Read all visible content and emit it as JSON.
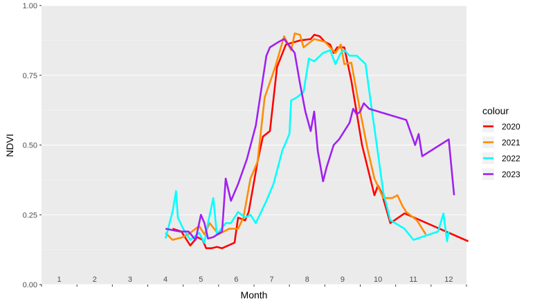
{
  "chart_data": {
    "type": "line",
    "xlabel": "Month",
    "ylabel": "NDVI",
    "xlim": [
      0.5,
      12.5
    ],
    "ylim": [
      0,
      1
    ],
    "x_ticks": [
      "1",
      "2",
      "3",
      "4",
      "5",
      "6",
      "7",
      "8",
      "9",
      "10",
      "11",
      "12"
    ],
    "y_ticks": [
      "0.00",
      "0.25",
      "0.50",
      "0.75",
      "1.00"
    ],
    "grid": true,
    "legend": {
      "title": "colour",
      "position": "right"
    },
    "series": [
      {
        "name": "2020",
        "color": "#ff0000",
        "points": [
          [
            4.2,
            0.2
          ],
          [
            4.45,
            0.19
          ],
          [
            4.7,
            0.14
          ],
          [
            4.9,
            0.17
          ],
          [
            5.05,
            0.16
          ],
          [
            5.15,
            0.13
          ],
          [
            5.3,
            0.13
          ],
          [
            5.45,
            0.135
          ],
          [
            5.6,
            0.13
          ],
          [
            5.95,
            0.15
          ],
          [
            6.05,
            0.24
          ],
          [
            6.25,
            0.23
          ],
          [
            6.35,
            0.26
          ],
          [
            6.6,
            0.44
          ],
          [
            6.75,
            0.53
          ],
          [
            6.95,
            0.55
          ],
          [
            7.15,
            0.78
          ],
          [
            7.4,
            0.86
          ],
          [
            7.8,
            0.875
          ],
          [
            8.1,
            0.88
          ],
          [
            8.2,
            0.895
          ],
          [
            8.35,
            0.89
          ],
          [
            8.5,
            0.87
          ],
          [
            8.65,
            0.86
          ],
          [
            8.75,
            0.83
          ],
          [
            8.85,
            0.85
          ],
          [
            9.05,
            0.85
          ],
          [
            9.25,
            0.73
          ],
          [
            9.55,
            0.5
          ],
          [
            9.9,
            0.32
          ],
          [
            10.0,
            0.355
          ],
          [
            10.1,
            0.33
          ],
          [
            10.35,
            0.22
          ],
          [
            10.75,
            0.255
          ],
          [
            12.55,
            0.155
          ]
        ]
      },
      {
        "name": "2021",
        "color": "#ff8c00",
        "points": [
          [
            4.0,
            0.185
          ],
          [
            4.2,
            0.16
          ],
          [
            4.5,
            0.17
          ],
          [
            4.7,
            0.185
          ],
          [
            4.95,
            0.21
          ],
          [
            5.1,
            0.18
          ],
          [
            5.25,
            0.22
          ],
          [
            5.5,
            0.18
          ],
          [
            5.8,
            0.2
          ],
          [
            6.05,
            0.2
          ],
          [
            6.2,
            0.24
          ],
          [
            6.4,
            0.38
          ],
          [
            6.6,
            0.44
          ],
          [
            6.8,
            0.67
          ],
          [
            7.1,
            0.78
          ],
          [
            7.35,
            0.89
          ],
          [
            7.55,
            0.84
          ],
          [
            7.65,
            0.9
          ],
          [
            7.8,
            0.895
          ],
          [
            7.9,
            0.85
          ],
          [
            8.2,
            0.88
          ],
          [
            8.5,
            0.87
          ],
          [
            8.8,
            0.83
          ],
          [
            8.95,
            0.86
          ],
          [
            9.05,
            0.79
          ],
          [
            9.25,
            0.795
          ],
          [
            9.5,
            0.62
          ],
          [
            9.7,
            0.49
          ],
          [
            9.9,
            0.38
          ],
          [
            10.15,
            0.31
          ],
          [
            10.4,
            0.31
          ],
          [
            10.55,
            0.32
          ],
          [
            10.7,
            0.28
          ],
          [
            10.8,
            0.26
          ],
          [
            11.1,
            0.23
          ],
          [
            11.35,
            0.18
          ]
        ]
      },
      {
        "name": "2022",
        "color": "#00ffff",
        "points": [
          [
            4.0,
            0.165
          ],
          [
            4.2,
            0.26
          ],
          [
            4.3,
            0.335
          ],
          [
            4.35,
            0.24
          ],
          [
            4.5,
            0.2
          ],
          [
            4.7,
            0.16
          ],
          [
            4.95,
            0.185
          ],
          [
            5.1,
            0.15
          ],
          [
            5.2,
            0.22
          ],
          [
            5.35,
            0.31
          ],
          [
            5.45,
            0.18
          ],
          [
            5.7,
            0.22
          ],
          [
            5.85,
            0.22
          ],
          [
            6.05,
            0.26
          ],
          [
            6.25,
            0.24
          ],
          [
            6.4,
            0.25
          ],
          [
            6.55,
            0.22
          ],
          [
            6.85,
            0.3
          ],
          [
            7.05,
            0.36
          ],
          [
            7.3,
            0.48
          ],
          [
            7.5,
            0.54
          ],
          [
            7.55,
            0.66
          ],
          [
            7.7,
            0.67
          ],
          [
            7.9,
            0.69
          ],
          [
            8.05,
            0.81
          ],
          [
            8.2,
            0.8
          ],
          [
            8.45,
            0.83
          ],
          [
            8.65,
            0.84
          ],
          [
            8.8,
            0.79
          ],
          [
            8.95,
            0.83
          ],
          [
            9.05,
            0.84
          ],
          [
            9.2,
            0.82
          ],
          [
            9.4,
            0.82
          ],
          [
            9.65,
            0.79
          ],
          [
            9.8,
            0.65
          ],
          [
            10.0,
            0.47
          ],
          [
            10.15,
            0.33
          ],
          [
            10.35,
            0.23
          ],
          [
            10.75,
            0.2
          ],
          [
            11.0,
            0.16
          ],
          [
            11.7,
            0.19
          ],
          [
            11.85,
            0.255
          ],
          [
            11.95,
            0.155
          ],
          [
            12.0,
            0.19
          ]
        ]
      },
      {
        "name": "2023",
        "color": "#a020f0",
        "points": [
          [
            4.0,
            0.2
          ],
          [
            4.4,
            0.19
          ],
          [
            4.65,
            0.19
          ],
          [
            4.85,
            0.16
          ],
          [
            5.0,
            0.25
          ],
          [
            5.1,
            0.22
          ],
          [
            5.2,
            0.165
          ],
          [
            5.35,
            0.17
          ],
          [
            5.6,
            0.19
          ],
          [
            5.7,
            0.38
          ],
          [
            5.85,
            0.3
          ],
          [
            6.05,
            0.36
          ],
          [
            6.3,
            0.45
          ],
          [
            6.55,
            0.57
          ],
          [
            6.85,
            0.82
          ],
          [
            6.95,
            0.85
          ],
          [
            7.2,
            0.87
          ],
          [
            7.35,
            0.88
          ],
          [
            7.5,
            0.855
          ],
          [
            7.65,
            0.83
          ],
          [
            7.8,
            0.72
          ],
          [
            7.95,
            0.62
          ],
          [
            8.1,
            0.55
          ],
          [
            8.2,
            0.62
          ],
          [
            8.3,
            0.48
          ],
          [
            8.45,
            0.37
          ],
          [
            8.55,
            0.42
          ],
          [
            8.65,
            0.46
          ],
          [
            8.75,
            0.5
          ],
          [
            8.9,
            0.52
          ],
          [
            9.05,
            0.55
          ],
          [
            9.2,
            0.58
          ],
          [
            9.3,
            0.63
          ],
          [
            9.4,
            0.61
          ],
          [
            9.5,
            0.62
          ],
          [
            9.6,
            0.65
          ],
          [
            9.75,
            0.63
          ],
          [
            10.8,
            0.59
          ],
          [
            11.05,
            0.5
          ],
          [
            11.15,
            0.54
          ],
          [
            11.25,
            0.46
          ],
          [
            12.0,
            0.52
          ],
          [
            12.15,
            0.32
          ]
        ]
      }
    ]
  }
}
